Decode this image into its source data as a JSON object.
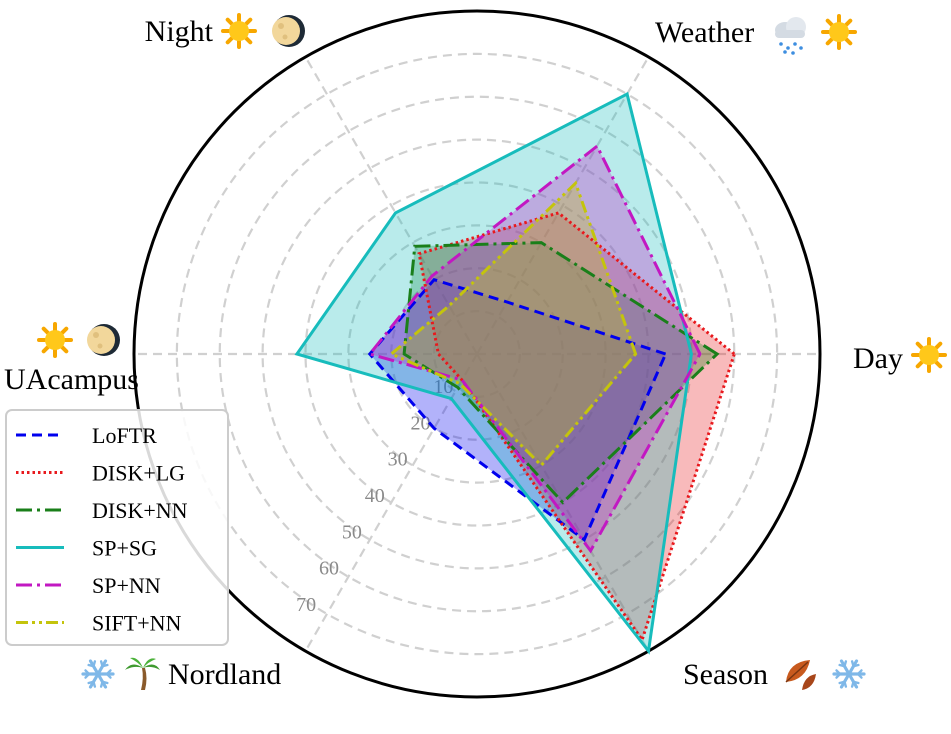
{
  "chart_data": {
    "type": "radar",
    "axes": [
      {
        "label": "Day",
        "icons": [
          "sun-icon"
        ]
      },
      {
        "label": "Weather",
        "icons": [
          "rain-cloud-icon",
          "sun-icon"
        ]
      },
      {
        "label": "Night",
        "icons": [
          "sun-icon",
          "moon-icon"
        ]
      },
      {
        "label": "UAcampus",
        "icons": [
          "sun-icon",
          "moon-icon"
        ]
      },
      {
        "label": "Nordland",
        "icons": [
          "snowflake-icon",
          "palm-tree-icon"
        ]
      },
      {
        "label": "Season",
        "icons": [
          "autumn-leaf-icon",
          "snowflake-icon"
        ]
      }
    ],
    "radial_ticks": [
      10,
      20,
      30,
      40,
      50,
      60,
      70
    ],
    "rlim": [
      0,
      80
    ],
    "grid": true,
    "legend_position": "bottom-left",
    "series": [
      {
        "name": "LoFTR",
        "color": "#0000ee",
        "dash": "dashed",
        "values": [
          44,
          14,
          20,
          25,
          20,
          50
        ]
      },
      {
        "name": "DISK+LG",
        "color": "#e8191d",
        "dash": "dotted",
        "values": [
          60,
          38,
          27,
          9,
          7,
          77
        ]
      },
      {
        "name": "DISK+NN",
        "color": "#1a7f1a",
        "dash": "dashdot",
        "values": [
          56,
          30,
          29,
          17,
          9,
          40
        ]
      },
      {
        "name": "SP+SG",
        "color": "#17bcbc",
        "dash": "solid",
        "values": [
          50,
          70,
          38,
          42,
          12,
          80
        ]
      },
      {
        "name": "SP+NN",
        "color": "#c218c2",
        "dash": "dashdot",
        "values": [
          52,
          56,
          21,
          25,
          7,
          53
        ]
      },
      {
        "name": "SIFT+NN",
        "color": "#c4c40c",
        "dash": "dashdotdot",
        "values": [
          37,
          46,
          13,
          20,
          8,
          30
        ]
      }
    ]
  }
}
